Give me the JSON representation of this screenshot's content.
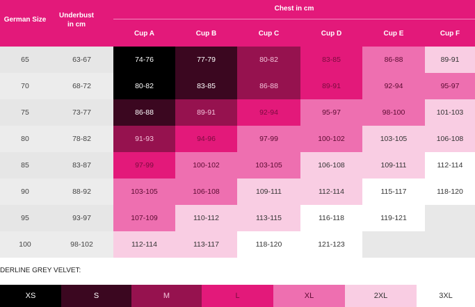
{
  "header": {
    "german_size": "German Size",
    "underbust": "Underbust\nin cm",
    "chest": "Chest in cm",
    "cups": [
      "Cup A",
      "Cup B",
      "Cup C",
      "Cup D",
      "Cup E",
      "Cup F"
    ]
  },
  "rows": [
    {
      "size": "65",
      "underbust": "63-67",
      "cups": [
        "74-76",
        "77-79",
        "80-82",
        "83-85",
        "86-88",
        "89-91"
      ]
    },
    {
      "size": "70",
      "underbust": "68-72",
      "cups": [
        "80-82",
        "83-85",
        "86-88",
        "89-91",
        "92-94",
        "95-97"
      ]
    },
    {
      "size": "75",
      "underbust": "73-77",
      "cups": [
        "86-88",
        "89-91",
        "92-94",
        "95-97",
        "98-100",
        "101-103"
      ]
    },
    {
      "size": "80",
      "underbust": "78-82",
      "cups": [
        "91-93",
        "94-96",
        "97-99",
        "100-102",
        "103-105",
        "106-108"
      ]
    },
    {
      "size": "85",
      "underbust": "83-87",
      "cups": [
        "97-99",
        "100-102",
        "103-105",
        "106-108",
        "109-111",
        "112-114"
      ]
    },
    {
      "size": "90",
      "underbust": "88-92",
      "cups": [
        "103-105",
        "106-108",
        "109-111",
        "112-114",
        "115-117",
        "118-120"
      ]
    },
    {
      "size": "95",
      "underbust": "93-97",
      "cups": [
        "107-109",
        "110-112",
        "113-115",
        "116-118",
        "119-121",
        ""
      ]
    },
    {
      "size": "100",
      "underbust": "98-102",
      "cups": [
        "112-114",
        "113-117",
        "118-120",
        "121-123",
        "",
        ""
      ]
    }
  ],
  "legend": {
    "title": "DERLINE GREY VELVET:",
    "sizes": [
      "XS",
      "S",
      "M",
      "L",
      "XL",
      "2XL",
      "3XL"
    ]
  },
  "colors": {
    "header": "#e3197a",
    "XS": "#000000",
    "S": "#3b0720",
    "M": "#96124f",
    "L": "#e3197a",
    "XL": "#ee6fb0",
    "2XL": "#f9cde3",
    "3XL": "#ffffff",
    "empty": "#e8e8e8"
  },
  "cell_levels": [
    [
      "XS",
      "S",
      "M",
      "L",
      "XL",
      "2XL"
    ],
    [
      "XS",
      "S",
      "M",
      "L",
      "XL",
      "XL"
    ],
    [
      "S",
      "M",
      "L",
      "XL",
      "XL",
      "2XL"
    ],
    [
      "M",
      "L",
      "XL",
      "XL",
      "2XL",
      "2XL"
    ],
    [
      "L",
      "XL",
      "XL",
      "2XL",
      "2XL",
      "3XL"
    ],
    [
      "XL",
      "XL",
      "2XL",
      "2XL",
      "3XL",
      "3XL"
    ],
    [
      "XL",
      "2XL",
      "2XL",
      "3XL",
      "3XL",
      "empty"
    ],
    [
      "2XL",
      "2XL",
      "3XL",
      "3XL",
      "empty",
      "empty"
    ]
  ]
}
